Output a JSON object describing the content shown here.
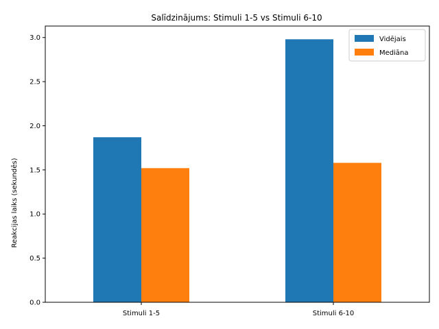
{
  "chart_data": {
    "type": "bar",
    "title": "Salīdzinājums: Stimuli 1-5 vs Stimuli 6-10",
    "xlabel": "",
    "ylabel": "Reakcijas laiks (sekundēs)",
    "categories": [
      "Stimuli 1-5",
      "Stimuli 6-10"
    ],
    "series": [
      {
        "name": "Vidējais",
        "color": "#1f77b4",
        "values": [
          1.87,
          2.98
        ]
      },
      {
        "name": "Mediāna",
        "color": "#ff7f0e",
        "values": [
          1.52,
          1.58
        ]
      }
    ],
    "ylim": [
      0,
      3.13
    ],
    "yticks": [
      0.0,
      0.5,
      1.0,
      1.5,
      2.0,
      2.5,
      3.0
    ],
    "ytick_labels": [
      "0.0",
      "0.5",
      "1.0",
      "1.5",
      "2.0",
      "2.5",
      "3.0"
    ],
    "grid": false,
    "legend_position": "top-right"
  }
}
